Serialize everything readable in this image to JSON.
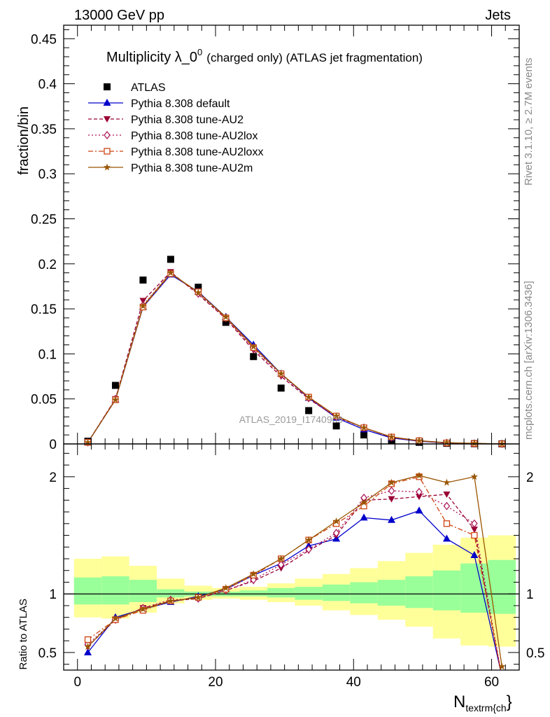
{
  "header": {
    "left": "13000 GeV pp",
    "right": "Jets"
  },
  "side_labels": {
    "top": "Rivet 3.1.10, ≥ 2.7M events",
    "bottom": "mcplots.cern.ch [arXiv:1306.3436]"
  },
  "watermark": "ATLAS_2019_I1740909",
  "colors": {
    "atlas": "#000000",
    "default": "#0000cc",
    "au2": "#990033",
    "au2lox": "#aa1155",
    "au2loxx": "#cc4411",
    "au2m": "#995500",
    "band_inner": "#99ff99",
    "band_outer": "#ffff99"
  },
  "chart_data": [
    {
      "type": "scatter",
      "title_main": "Multiplicity λ_0",
      "title_sup": "0",
      "title_rest": "(charged only) (ATLAS jet fragmentation)",
      "ylabel": "fraction/bin",
      "xlim": [
        -2,
        64
      ],
      "ylim": [
        0,
        0.465
      ],
      "yticks": [
        0,
        0.05,
        0.1,
        0.15,
        0.2,
        0.25,
        0.3,
        0.35,
        0.4,
        0.45
      ],
      "ytick_labels": [
        "0",
        "0.05",
        "0.1",
        "0.15",
        "0.2",
        "0.25",
        "0.3",
        "0.35",
        "0.4",
        "0.45"
      ],
      "x": [
        1.5,
        5.5,
        9.5,
        13.5,
        17.5,
        21.5,
        25.5,
        29.5,
        33.5,
        37.5,
        41.5,
        45.5,
        49.5,
        53.5,
        57.5,
        61.5
      ],
      "series": [
        {
          "key": "atlas",
          "name": "ATLAS",
          "marker": "square",
          "values": [
            0.003,
            0.065,
            0.182,
            0.205,
            0.174,
            0.135,
            0.097,
            0.062,
            0.037,
            0.02,
            0.01,
            0.004,
            0.0018,
            0.0007,
            0.0003,
            0.0001
          ]
        },
        {
          "key": "default",
          "name": "Pythia 8.308 default",
          "marker": "triangle-up",
          "dash": "",
          "values": [
            0.0015,
            0.049,
            0.152,
            0.188,
            0.169,
            0.141,
            0.11,
            0.078,
            0.051,
            0.029,
            0.016,
            0.0066,
            0.003,
            0.001,
            0.0004,
            0.0001
          ]
        },
        {
          "key": "au2",
          "name": "Pythia 8.308 tune-AU2",
          "marker": "triangle-down",
          "dash": "5,3",
          "values": [
            0.0017,
            0.05,
            0.159,
            0.191,
            0.166,
            0.139,
            0.104,
            0.075,
            0.05,
            0.03,
            0.018,
            0.0074,
            0.0033,
            0.0013,
            0.0005,
            0.0001
          ]
        },
        {
          "key": "au2lox",
          "name": "Pythia 8.308 tune-AU2lox",
          "marker": "diamond",
          "dash": "2,3",
          "values": [
            0.0017,
            0.05,
            0.154,
            0.19,
            0.167,
            0.14,
            0.106,
            0.077,
            0.051,
            0.03,
            0.018,
            0.0072,
            0.0033,
            0.0012,
            0.0005,
            0.0001
          ]
        },
        {
          "key": "au2loxx",
          "name": "Pythia 8.308 tune-AU2loxx",
          "marker": "square-open",
          "dash": "7,3,2,3",
          "values": [
            0.0018,
            0.049,
            0.152,
            0.189,
            0.169,
            0.14,
            0.107,
            0.078,
            0.052,
            0.031,
            0.018,
            0.0077,
            0.0036,
            0.0011,
            0.0004,
            0.0001
          ]
        },
        {
          "key": "au2m",
          "name": "Pythia 8.308 tune-AU2m",
          "marker": "star",
          "dash": "",
          "values": [
            0.0016,
            0.049,
            0.153,
            0.19,
            0.168,
            0.141,
            0.108,
            0.078,
            0.052,
            0.031,
            0.018,
            0.0078,
            0.0036,
            0.0014,
            0.0006,
            0.0001
          ]
        }
      ]
    },
    {
      "type": "line",
      "ylabel": "Ratio to ATLAS",
      "xlabel_main": "N",
      "xlabel_sub": "textrm{ch",
      "xlabel_close": "}",
      "xlim": [
        -2,
        64
      ],
      "ylim": [
        0.35,
        2.28
      ],
      "xticks": [
        0,
        20,
        40,
        60
      ],
      "xtick_labels": [
        "0",
        "20",
        "40",
        "60"
      ],
      "yticks": [
        0.5,
        1,
        2
      ],
      "ytick_labels": [
        "0.5",
        "1",
        "2"
      ],
      "x": [
        1.5,
        5.5,
        9.5,
        13.5,
        17.5,
        21.5,
        25.5,
        29.5,
        33.5,
        37.5,
        41.5,
        45.5,
        49.5,
        53.5,
        57.5,
        61.5
      ],
      "band_edges": [
        -0.5,
        3.5,
        7.5,
        11.5,
        15.5,
        19.5,
        23.5,
        27.5,
        31.5,
        35.5,
        39.5,
        43.5,
        47.5,
        51.5,
        55.5,
        59.5,
        63.5
      ],
      "band_outer_lo": [
        0.8,
        0.79,
        0.84,
        0.92,
        0.95,
        0.96,
        0.95,
        0.93,
        0.9,
        0.86,
        0.82,
        0.78,
        0.72,
        0.62,
        0.56,
        0.55,
        0.63
      ],
      "band_outer_hi": [
        1.3,
        1.32,
        1.24,
        1.13,
        1.07,
        1.05,
        1.06,
        1.09,
        1.13,
        1.17,
        1.22,
        1.28,
        1.35,
        1.42,
        1.48,
        1.5,
        1.48
      ],
      "band_inner_lo": [
        0.91,
        0.91,
        0.93,
        0.97,
        0.98,
        0.98,
        0.98,
        0.97,
        0.95,
        0.94,
        0.92,
        0.9,
        0.88,
        0.86,
        0.84,
        0.83,
        0.84
      ],
      "band_inner_hi": [
        1.14,
        1.15,
        1.12,
        1.04,
        1.02,
        1.02,
        1.03,
        1.05,
        1.06,
        1.08,
        1.1,
        1.12,
        1.15,
        1.2,
        1.26,
        1.29,
        1.26
      ],
      "series": [
        {
          "key": "default",
          "values": [
            0.5,
            0.8,
            0.87,
            0.93,
            0.98,
            1.04,
            1.16,
            1.26,
            1.41,
            1.47,
            1.65,
            1.63,
            1.71,
            1.47,
            1.33,
            0.3
          ]
        },
        {
          "key": "au2",
          "values": [
            0.55,
            0.78,
            0.88,
            0.94,
            0.96,
            1.03,
            1.11,
            1.22,
            1.37,
            1.5,
            1.8,
            1.81,
            1.83,
            1.85,
            1.55,
            0.28
          ]
        },
        {
          "key": "au2lox",
          "values": [
            0.57,
            0.78,
            0.88,
            0.95,
            0.96,
            1.03,
            1.12,
            1.25,
            1.38,
            1.52,
            1.82,
            1.88,
            1.87,
            1.75,
            1.6,
            0.29
          ]
        },
        {
          "key": "au2loxx",
          "values": [
            0.61,
            0.78,
            0.86,
            0.94,
            0.97,
            1.04,
            1.16,
            1.3,
            1.46,
            1.6,
            1.75,
            1.94,
            2.0,
            1.6,
            1.5,
            0.3
          ]
        },
        {
          "key": "au2m",
          "values": [
            0.55,
            0.79,
            0.87,
            0.94,
            0.97,
            1.05,
            1.17,
            1.3,
            1.46,
            1.62,
            1.78,
            1.95,
            2.01,
            1.95,
            2.0,
            0.38
          ]
        }
      ]
    }
  ]
}
